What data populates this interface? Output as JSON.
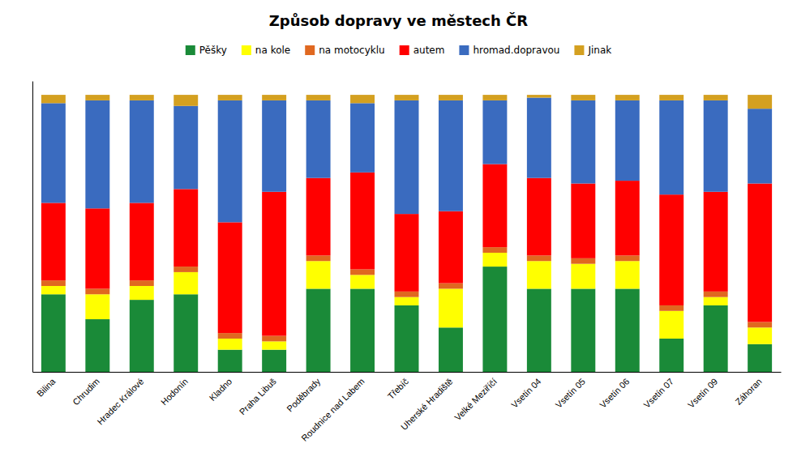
{
  "chart_data": {
    "type": "bar",
    "stacked": true,
    "title": "Způsob dopravy ve městech ČR",
    "categories": [
      "Bilina",
      "Chrudim",
      "Hradec Králové",
      "Hodonín",
      "Kladno",
      "Praha Libuš",
      "Poděbrady",
      "Roudnice nad Labem",
      "Třebíč",
      "Uherské Hradiště",
      "Velké Meziříčí",
      "Vsetín 04",
      "Vsetín 05",
      "Vsetín 06",
      "Vsetín 07",
      "Vsetín 09",
      "Záhoran"
    ],
    "series": [
      {
        "name": "Pěšky",
        "color": "#1a8a38",
        "values": [
          28,
          19,
          26,
          28,
          8,
          8,
          30,
          30,
          24,
          16,
          38,
          30,
          30,
          30,
          12,
          24,
          10
        ]
      },
      {
        "name": "na kole",
        "color": "#ffff00",
        "values": [
          3,
          9,
          5,
          8,
          4,
          3,
          10,
          5,
          3,
          14,
          5,
          10,
          9,
          10,
          10,
          3,
          6
        ]
      },
      {
        "name": "na motocyklu",
        "color": "#e06820",
        "values": [
          2,
          2,
          2,
          2,
          2,
          2,
          2,
          2,
          2,
          2,
          2,
          2,
          2,
          2,
          2,
          2,
          2
        ]
      },
      {
        "name": "autem",
        "color": "#ff0000",
        "values": [
          28,
          29,
          28,
          28,
          40,
          52,
          28,
          35,
          28,
          26,
          30,
          28,
          27,
          27,
          40,
          36,
          50
        ]
      },
      {
        "name": "hromad.dopravou",
        "color": "#3a6bbf",
        "values": [
          36,
          39,
          37,
          30,
          44,
          33,
          28,
          25,
          41,
          40,
          23,
          29,
          30,
          29,
          34,
          33,
          27
        ]
      },
      {
        "name": "Jinak",
        "color": "#d4a020",
        "values": [
          3,
          2,
          2,
          4,
          2,
          2,
          2,
          3,
          2,
          2,
          2,
          1,
          2,
          2,
          2,
          2,
          5
        ]
      }
    ],
    "ylim": [
      0,
      105
    ],
    "tick_labels": "x",
    "grid": false,
    "legend": "top"
  }
}
